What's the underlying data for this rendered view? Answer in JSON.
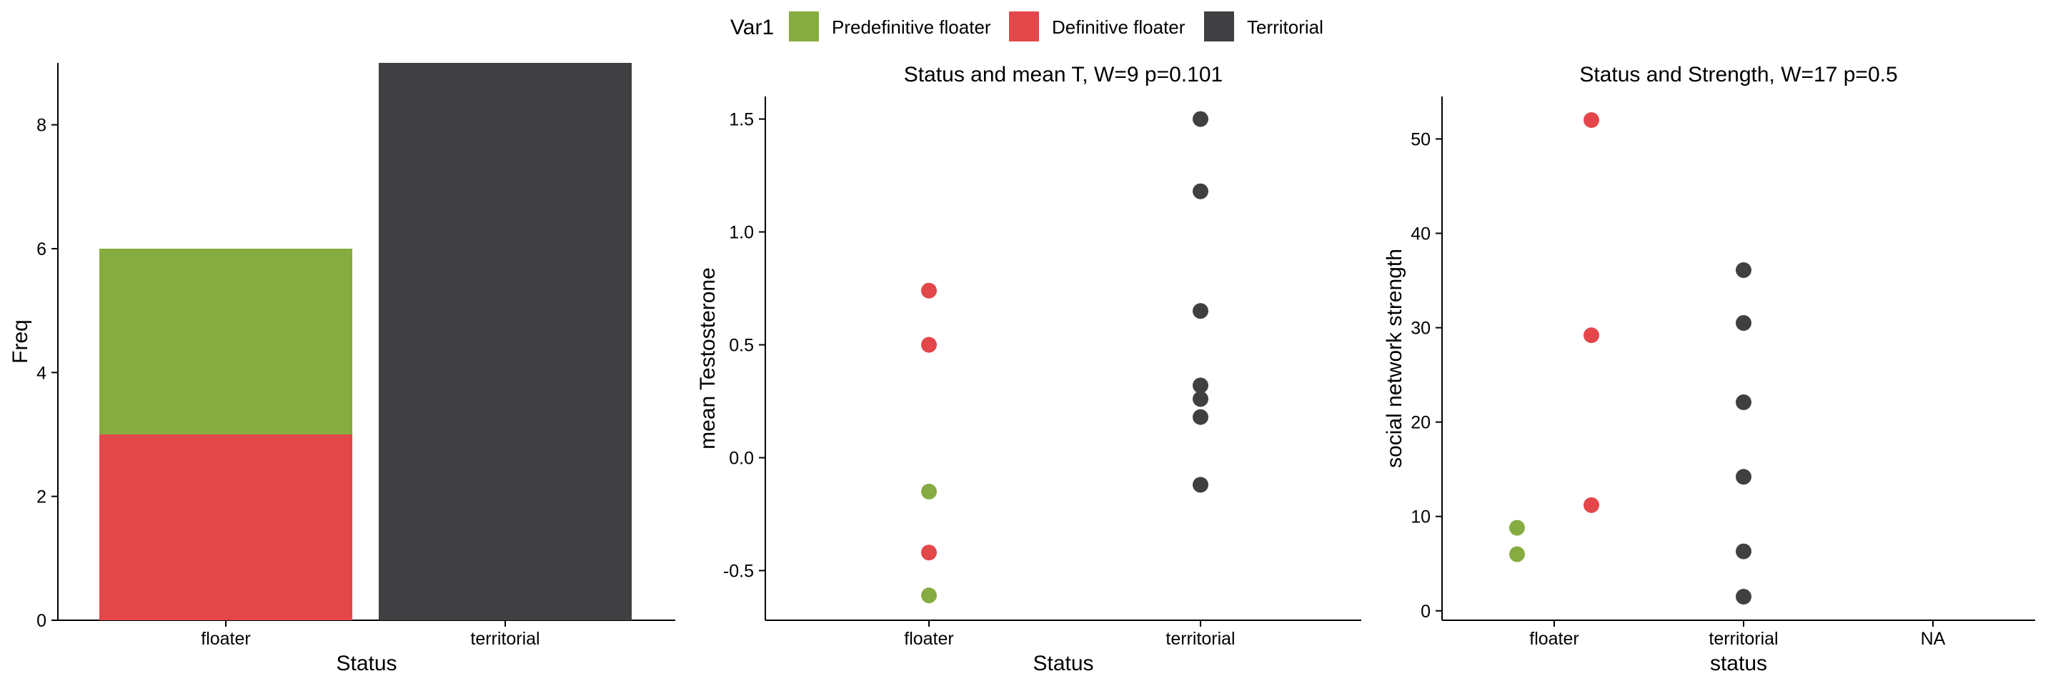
{
  "legend": {
    "title": "Var1",
    "entries": [
      {
        "label": "Predefinitive floater",
        "color": "#86AC41"
      },
      {
        "label": "Definitive floater",
        "color": "#E3474A"
      },
      {
        "label": "Territorial",
        "color": "#404042"
      }
    ]
  },
  "chart_data": [
    {
      "type": "bar",
      "stacked": true,
      "title": "",
      "xlabel": "Status",
      "ylabel": "Freq",
      "categories": [
        "floater",
        "territorial"
      ],
      "series": [
        {
          "name": "Definitive floater",
          "color": "#E3474A",
          "values": [
            3,
            0
          ]
        },
        {
          "name": "Predefinitive floater",
          "color": "#86AC41",
          "values": [
            3,
            0
          ]
        },
        {
          "name": "Territorial",
          "color": "#404042",
          "values": [
            0,
            9
          ]
        }
      ],
      "ylim": [
        0,
        9
      ],
      "yticks": [
        0,
        2,
        4,
        6,
        8
      ],
      "grid": false
    },
    {
      "type": "scatter",
      "title": "Status and mean T, W=9 p=0.101",
      "xlabel": "Status",
      "ylabel": "mean Testosterone",
      "categories": [
        "floater",
        "territorial"
      ],
      "points": [
        {
          "x": "floater",
          "y": 0.74,
          "group": "Definitive floater"
        },
        {
          "x": "floater",
          "y": 0.5,
          "group": "Definitive floater"
        },
        {
          "x": "floater",
          "y": -0.15,
          "group": "Predefinitive floater"
        },
        {
          "x": "floater",
          "y": -0.42,
          "group": "Definitive floater"
        },
        {
          "x": "floater",
          "y": -0.61,
          "group": "Predefinitive floater"
        },
        {
          "x": "territorial",
          "y": 1.5,
          "group": "Territorial"
        },
        {
          "x": "territorial",
          "y": 1.18,
          "group": "Territorial"
        },
        {
          "x": "territorial",
          "y": 0.65,
          "group": "Territorial"
        },
        {
          "x": "territorial",
          "y": 0.32,
          "group": "Territorial"
        },
        {
          "x": "territorial",
          "y": 0.26,
          "group": "Territorial"
        },
        {
          "x": "territorial",
          "y": 0.18,
          "group": "Territorial"
        },
        {
          "x": "territorial",
          "y": -0.12,
          "group": "Territorial"
        }
      ],
      "ylim": [
        -0.72,
        1.6
      ],
      "yticks": [
        -0.5,
        0.0,
        0.5,
        1.0,
        1.5
      ],
      "ytick_labels": [
        "-0.5",
        "0.0",
        "0.5",
        "1.0",
        "1.5"
      ],
      "grid": false
    },
    {
      "type": "scatter",
      "title": "Status and Strength, W=17 p=0.5",
      "xlabel": "status",
      "ylabel": "social network strength",
      "categories": [
        "floater",
        "territorial",
        "NA"
      ],
      "dodge": true,
      "points": [
        {
          "x": "floater",
          "y": 8.8,
          "group": "Predefinitive floater"
        },
        {
          "x": "floater",
          "y": 6.0,
          "group": "Predefinitive floater"
        },
        {
          "x": "floater",
          "y": 52.0,
          "group": "Definitive floater"
        },
        {
          "x": "floater",
          "y": 29.2,
          "group": "Definitive floater"
        },
        {
          "x": "floater",
          "y": 11.2,
          "group": "Definitive floater"
        },
        {
          "x": "territorial",
          "y": 36.1,
          "group": "Territorial"
        },
        {
          "x": "territorial",
          "y": 30.5,
          "group": "Territorial"
        },
        {
          "x": "territorial",
          "y": 22.1,
          "group": "Territorial"
        },
        {
          "x": "territorial",
          "y": 14.2,
          "group": "Territorial"
        },
        {
          "x": "territorial",
          "y": 6.3,
          "group": "Territorial"
        },
        {
          "x": "territorial",
          "y": 1.5,
          "group": "Territorial"
        }
      ],
      "ylim": [
        -1,
        54.5
      ],
      "yticks": [
        0,
        10,
        20,
        30,
        40,
        50
      ],
      "ytick_labels": [
        "0",
        "10",
        "20",
        "30",
        "40",
        "50"
      ],
      "grid": false
    }
  ]
}
